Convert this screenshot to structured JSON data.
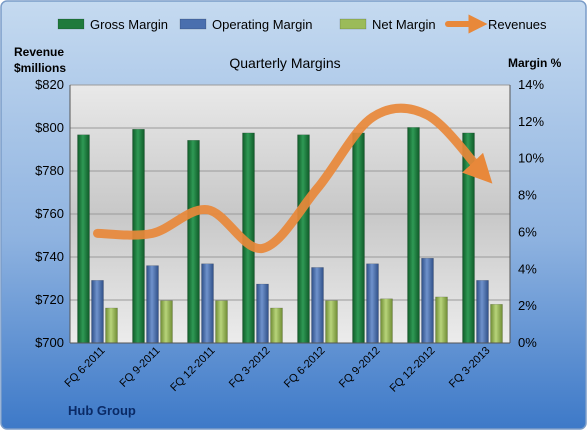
{
  "chart_data": {
    "type": "bar",
    "title": "Quarterly Margins",
    "left_axis_label_line1": "Revenue",
    "left_axis_label_line2": "$millions",
    "right_axis_label": "Margin %",
    "footer_label": "Hub Group",
    "categories": [
      "FQ 6-2011",
      "FQ 9-2011",
      "FQ 12-2011",
      "FQ 3-2012",
      "FQ 6-2012",
      "FQ 9-2012",
      "FQ 12-2012",
      "FQ 3-2013"
    ],
    "left_axis": {
      "range": [
        700,
        820
      ],
      "ticks": [
        "$700",
        "$720",
        "$740",
        "$760",
        "$780",
        "$800",
        "$820"
      ]
    },
    "right_axis": {
      "range": [
        0,
        14
      ],
      "ticks": [
        "0%",
        "2%",
        "4%",
        "6%",
        "8%",
        "10%",
        "12%",
        "14%"
      ]
    },
    "series": [
      {
        "name": "Gross Margin",
        "type": "bar",
        "axis": "right",
        "color": "#1f7a3c",
        "values": [
          11.3,
          11.6,
          11.0,
          11.4,
          11.3,
          11.4,
          11.7,
          11.4
        ]
      },
      {
        "name": "Operating Margin",
        "type": "bar",
        "axis": "right",
        "color": "#4a6fae",
        "values": [
          3.4,
          4.2,
          4.3,
          3.2,
          4.1,
          4.3,
          4.6,
          3.4
        ]
      },
      {
        "name": "Net Margin",
        "type": "bar",
        "axis": "right",
        "color": "#9bbb59",
        "values": [
          1.9,
          2.3,
          2.3,
          1.9,
          2.3,
          2.4,
          2.5,
          2.1
        ]
      },
      {
        "name": "Revenues",
        "type": "line",
        "axis": "left",
        "color": "#e8883a",
        "values": [
          751,
          751,
          762,
          744,
          772,
          805,
          806,
          779
        ]
      }
    ],
    "legend_position": "top",
    "grid": true
  }
}
